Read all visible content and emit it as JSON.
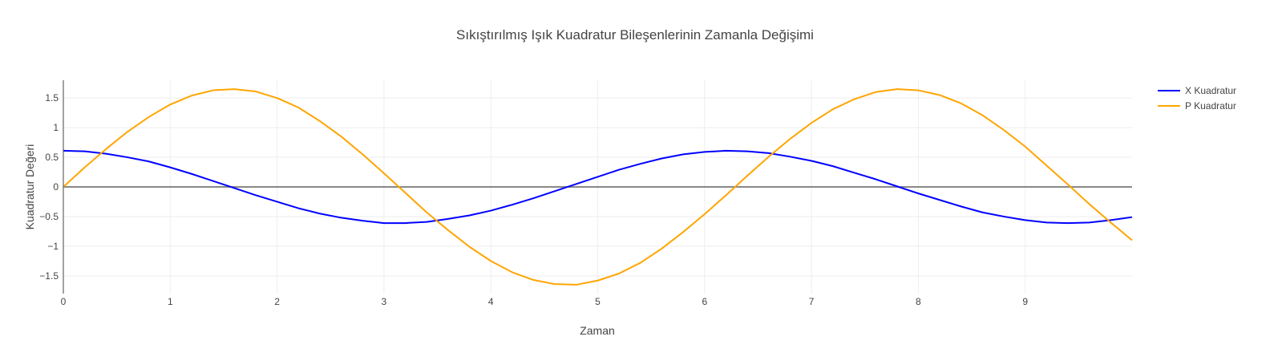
{
  "chart_data": {
    "type": "line",
    "title": "Sıkıştırılmış Işık Kuadratur Bileşenlerinin Zamanla Değişimi",
    "xlabel": "Zaman",
    "ylabel": "Kuadratur Değeri",
    "xlim": [
      0,
      10
    ],
    "ylim": [
      -1.8,
      1.8
    ],
    "x_ticks": [
      0,
      1,
      2,
      3,
      4,
      5,
      6,
      7,
      8,
      9
    ],
    "x_tick_labels": [
      "0",
      "1",
      "2",
      "3",
      "4",
      "5",
      "6",
      "7",
      "8",
      "9"
    ],
    "y_ticks": [
      -1.5,
      -1,
      -0.5,
      0,
      0.5,
      1,
      1.5
    ],
    "y_tick_labels": [
      "−1.5",
      "−1",
      "−0.5",
      "0",
      "0.5",
      "1",
      "1.5"
    ],
    "grid": true,
    "legend_position": "top-right",
    "x": [
      0,
      0.2,
      0.4,
      0.6,
      0.8,
      1,
      1.2,
      1.4,
      1.6,
      1.8,
      2,
      2.2,
      2.4,
      2.6,
      2.8,
      3,
      3.2,
      3.4,
      3.6,
      3.8,
      4,
      4.2,
      4.4,
      4.6,
      4.8,
      5,
      5.2,
      5.4,
      5.6,
      5.8,
      6,
      6.2,
      6.4,
      6.6,
      6.8,
      7,
      7.2,
      7.4,
      7.6,
      7.8,
      8,
      8.2,
      8.4,
      8.6,
      8.8,
      9,
      9.2,
      9.4,
      9.6,
      9.8,
      10
    ],
    "series": [
      {
        "name": "X Kuadratur",
        "color": "#0000ff",
        "values": [
          0.61,
          0.6,
          0.56,
          0.5,
          0.43,
          0.33,
          0.22,
          0.1,
          -0.02,
          -0.14,
          -0.25,
          -0.36,
          -0.45,
          -0.52,
          -0.57,
          -0.61,
          -0.61,
          -0.59,
          -0.54,
          -0.48,
          -0.4,
          -0.3,
          -0.19,
          -0.07,
          0.05,
          0.17,
          0.29,
          0.39,
          0.48,
          0.55,
          0.59,
          0.61,
          0.6,
          0.57,
          0.51,
          0.44,
          0.35,
          0.24,
          0.13,
          0.01,
          -0.11,
          -0.22,
          -0.33,
          -0.43,
          -0.5,
          -0.56,
          -0.6,
          -0.61,
          -0.6,
          -0.56,
          -0.51
        ]
      },
      {
        "name": "P Kuadratur",
        "color": "#ffa500",
        "values": [
          0,
          0.33,
          0.64,
          0.93,
          1.18,
          1.39,
          1.54,
          1.63,
          1.65,
          1.61,
          1.5,
          1.34,
          1.11,
          0.85,
          0.55,
          0.23,
          -0.1,
          -0.43,
          -0.73,
          -1.01,
          -1.25,
          -1.44,
          -1.57,
          -1.64,
          -1.65,
          -1.58,
          -1.46,
          -1.28,
          -1.04,
          -0.76,
          -0.46,
          -0.14,
          0.19,
          0.51,
          0.81,
          1.08,
          1.31,
          1.48,
          1.6,
          1.65,
          1.63,
          1.55,
          1.41,
          1.21,
          0.96,
          0.68,
          0.36,
          0.04,
          -0.29,
          -0.6,
          -0.9
        ]
      }
    ]
  }
}
